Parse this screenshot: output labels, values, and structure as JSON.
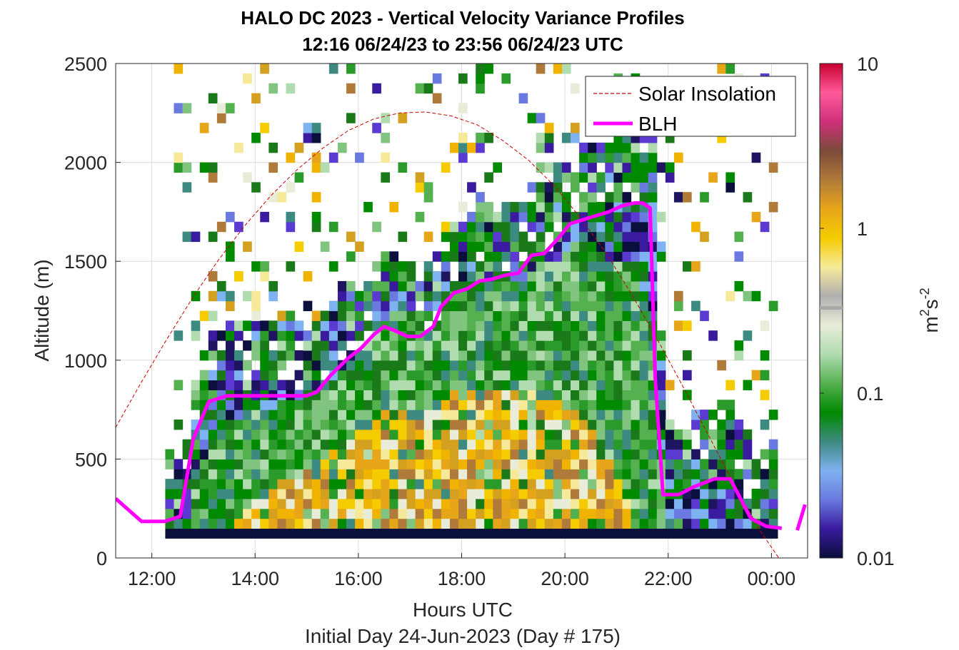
{
  "chart_data": {
    "type": "heatmap",
    "title": "HALO DC 2023 - Vertical Velocity Variance Profiles",
    "subtitle": "12:16 06/24/23 to 23:56 06/24/23  UTC",
    "xlabel": "Hours UTC",
    "xlabel2": "Initial Day 24-Jun-2023 (Day # 175)",
    "ylabel": "Altitude (m)",
    "xlim": [
      11.3,
      24.7
    ],
    "ylim": [
      0,
      2500
    ],
    "x_ticks": [
      {
        "value": 12,
        "label": "12:00"
      },
      {
        "value": 14,
        "label": "14:00"
      },
      {
        "value": 16,
        "label": "16:00"
      },
      {
        "value": 18,
        "label": "18:00"
      },
      {
        "value": 20,
        "label": "20:00"
      },
      {
        "value": 22,
        "label": "22:00"
      },
      {
        "value": 24,
        "label": "00:00"
      }
    ],
    "y_ticks": [
      0,
      500,
      1000,
      1500,
      2000,
      2500
    ],
    "grid": true,
    "colorbar": {
      "scale": "log",
      "range": [
        0.01,
        10
      ],
      "ticks": [
        {
          "value": 0.01,
          "label": "0.01"
        },
        {
          "value": 0.1,
          "label": "0.1"
        },
        {
          "value": 1,
          "label": "1"
        },
        {
          "value": 10,
          "label": "10"
        }
      ],
      "unit_base": "m",
      "unit_exp1": "2",
      "unit_mid": "s",
      "unit_exp2": "-2",
      "stops": [
        "#0a0f3c",
        "#3a1a9e",
        "#6a7ae0",
        "#7fb2f0",
        "#3d8a80",
        "#008a00",
        "#55b050",
        "#b0dcb0",
        "#e8ecd8",
        "#b0b0b0",
        "#f6ea9a",
        "#f5cc00",
        "#e7a51a",
        "#b07a3a",
        "#7a4a3a",
        "#d0307a",
        "#ff5a9a",
        "#c80030"
      ]
    },
    "grid_cells": {
      "t_start": 12.26,
      "dt": 0.167,
      "z_start": 100,
      "dz": 50,
      "n_time": 71,
      "n_alt": 48
    },
    "series": [
      {
        "name": "Solar Insolation",
        "color": "#cc0000",
        "style": "dashed",
        "x": [
          11.3,
          11.8,
          12.3,
          12.8,
          13.3,
          13.8,
          14.3,
          14.8,
          15.3,
          15.8,
          16.3,
          16.8,
          17.3,
          17.8,
          18.3,
          18.8,
          19.3,
          19.8,
          20.3,
          20.8,
          21.3,
          21.8,
          22.3,
          22.8,
          23.3,
          23.8,
          24.3,
          24.6
        ],
        "y": [
          660,
          890,
          1110,
          1320,
          1510,
          1680,
          1830,
          1960,
          2070,
          2160,
          2220,
          2250,
          2255,
          2235,
          2190,
          2110,
          2010,
          1880,
          1720,
          1540,
          1330,
          1100,
          860,
          610,
          360,
          130,
          -60,
          -160
        ]
      },
      {
        "name": "BLH",
        "color": "#ff00ff",
        "style": "solid",
        "x": [
          11.3,
          11.8,
          12.25,
          12.55,
          12.8,
          13.1,
          13.45,
          14.0,
          14.5,
          15.0,
          15.2,
          15.45,
          15.8,
          16.05,
          16.3,
          16.5,
          16.7,
          16.95,
          17.2,
          17.45,
          17.6,
          17.85,
          18.1,
          18.35,
          18.6,
          18.85,
          19.1,
          19.35,
          19.6,
          19.85,
          20.1,
          20.35,
          20.6,
          20.85,
          21.1,
          21.35,
          21.5,
          21.65,
          21.75,
          21.9,
          22.2,
          22.5,
          22.9,
          23.2,
          23.4,
          23.6,
          23.9,
          24.2
        ],
        "y": [
          300,
          185,
          185,
          210,
          600,
          790,
          820,
          820,
          820,
          820,
          840,
          920,
          1010,
          1060,
          1130,
          1170,
          1150,
          1120,
          1120,
          1170,
          1270,
          1340,
          1360,
          1400,
          1410,
          1430,
          1440,
          1530,
          1540,
          1610,
          1690,
          1710,
          1730,
          1750,
          1780,
          1795,
          1795,
          1770,
          900,
          320,
          320,
          360,
          400,
          400,
          300,
          200,
          160,
          150
        ]
      },
      {
        "name": "",
        "color": "#ff00ff",
        "style": "solid",
        "x": [
          24.5,
          24.65
        ],
        "y": [
          140,
          270
        ]
      }
    ],
    "legend": {
      "placement": "top-right",
      "entries": [
        {
          "label": "Solar Insolation",
          "style": "dashed",
          "color": "#cc0000"
        },
        {
          "label": "BLH",
          "style": "solid",
          "color": "#ff00ff"
        }
      ]
    }
  }
}
